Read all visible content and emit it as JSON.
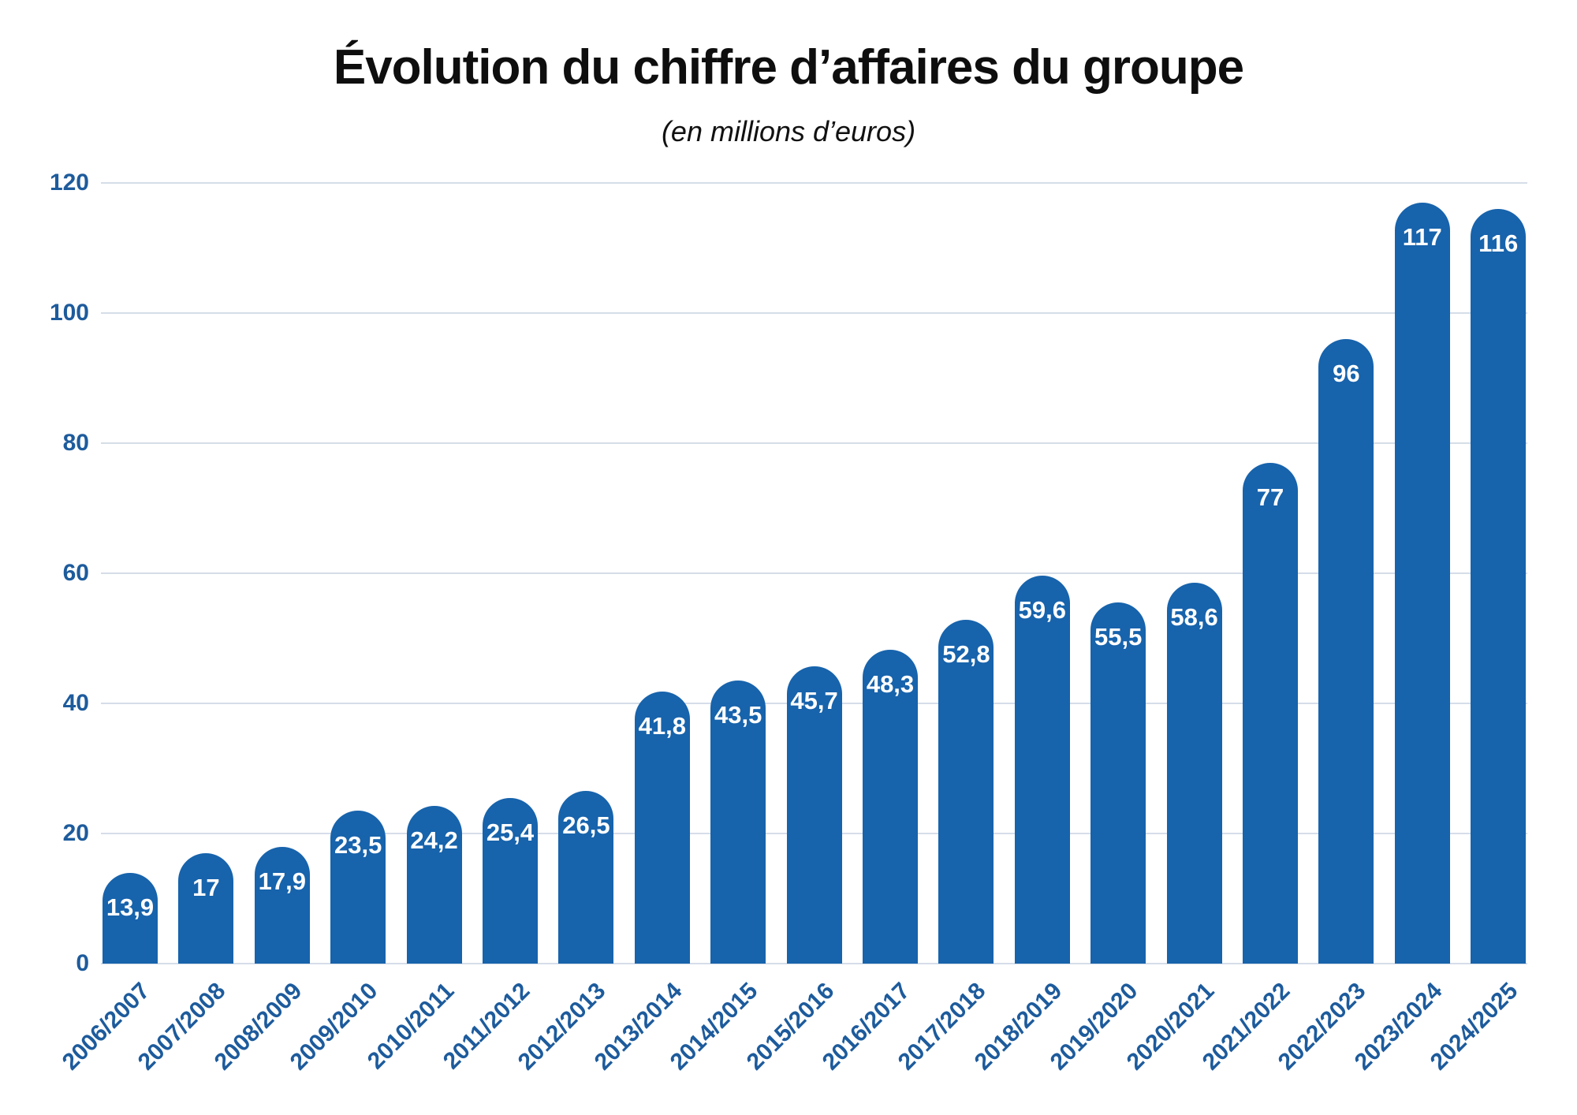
{
  "chart_data": {
    "type": "bar",
    "title": "Évolution du chiffre d’affaires du groupe",
    "subtitle": "(en millions d’euros)",
    "categories": [
      "2006/2007",
      "2007/2008",
      "2008/2009",
      "2009/2010",
      "2010/2011",
      "2011/2012",
      "2012/2013",
      "2013/2014",
      "2014/2015",
      "2015/2016",
      "2016/2017",
      "2017/2018",
      "2018/2019",
      "2019/2020",
      "2020/2021",
      "2021/2022",
      "2022/2023",
      "2023/2024",
      "2024/2025"
    ],
    "values": [
      13.9,
      17,
      17.9,
      23.5,
      24.2,
      25.4,
      26.5,
      41.8,
      43.5,
      45.7,
      48.3,
      52.8,
      59.6,
      55.5,
      58.6,
      77,
      96,
      117,
      116
    ],
    "value_labels": [
      "13,9",
      "17",
      "17,9",
      "23,5",
      "24,2",
      "25,4",
      "26,5",
      "41,8",
      "43,5",
      "45,7",
      "48,3",
      "52,8",
      "59,6",
      "55,5",
      "58,6",
      "77",
      "96",
      "117",
      "116"
    ],
    "xlabel": "",
    "ylabel": "",
    "ylim": [
      0,
      120
    ],
    "yticks": [
      0,
      20,
      40,
      60,
      80,
      100,
      120
    ],
    "grid": true,
    "legend": "none",
    "colors": {
      "bar": "#1763ac",
      "axis_label": "#1d5b9c",
      "gridline": "#d5dde8",
      "title": "#0e0e0e",
      "value_label": "#ffffff"
    }
  }
}
